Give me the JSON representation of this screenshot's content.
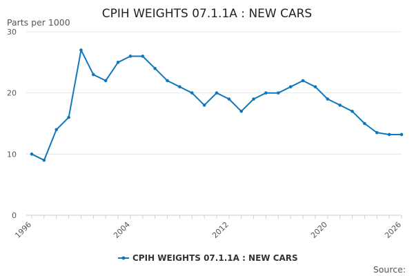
{
  "chart_data": {
    "type": "line",
    "title": "CPIH WEIGHTS 07.1.1A : NEW CARS",
    "ylabel": "Parts per 1000",
    "xlabel": "",
    "ylim": [
      0,
      30
    ],
    "xlim": [
      1996,
      2026
    ],
    "y_ticks": [
      "0",
      "10",
      "20",
      "30"
    ],
    "x_ticks": [
      "1996",
      "2004",
      "2012",
      "2020",
      "2026"
    ],
    "grid": true,
    "legend_position": "bottom",
    "x": [
      1996,
      1997,
      1998,
      1999,
      2000,
      2001,
      2002,
      2003,
      2004,
      2005,
      2006,
      2007,
      2008,
      2009,
      2010,
      2011,
      2012,
      2013,
      2014,
      2015,
      2016,
      2017,
      2018,
      2019,
      2020,
      2021,
      2022,
      2023,
      2024,
      2025,
      2026
    ],
    "series": [
      {
        "name": "CPIH WEIGHTS 07.1.1A : NEW CARS",
        "color": "#0e76bc",
        "values": [
          10,
          9,
          14,
          16,
          27,
          23,
          22,
          25,
          26,
          26,
          24,
          22,
          21,
          20,
          18,
          20,
          19,
          17,
          19,
          20,
          20,
          21,
          22,
          21,
          19,
          18,
          17,
          15,
          13.5,
          13.2,
          13.2
        ]
      }
    ]
  },
  "footer": {
    "source_label": "Source:"
  }
}
